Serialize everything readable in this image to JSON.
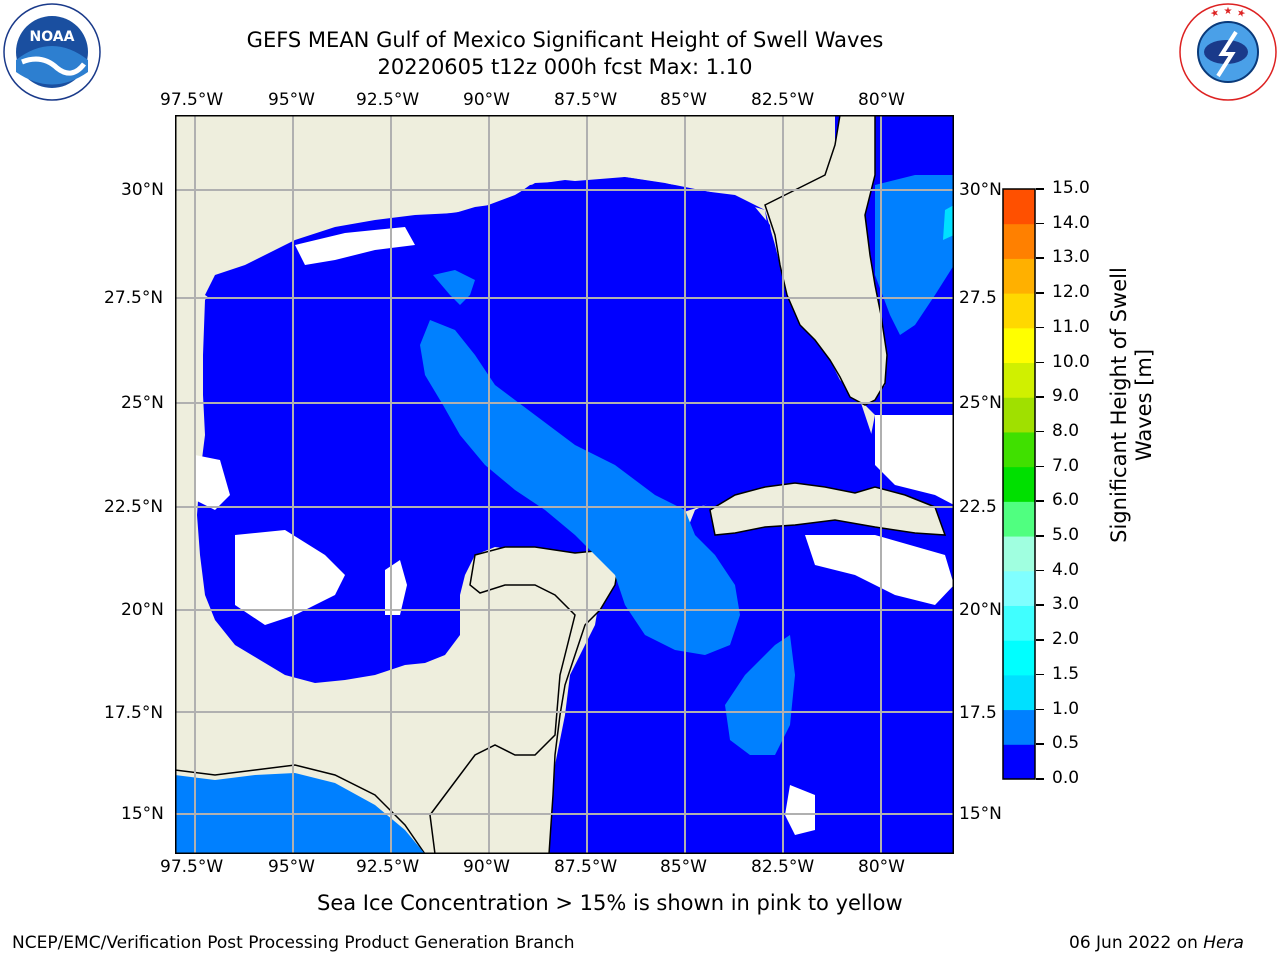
{
  "header": {
    "title_line1": "GEFS MEAN Gulf of Mexico Significant Height of Swell Waves",
    "title_line2": "20220605 t12z 000h fcst   Max: 1.10",
    "noaa_logo_text": "NOAA",
    "noaa_ring_text": "NATIONAL OCEANIC AND ATMOSPHERIC ADMINISTRATION · U.S. DEPARTMENT OF COMMERCE",
    "nws_ring_text": "NATIONAL WEATHER SERVICE"
  },
  "map": {
    "lon_labels": [
      "97.5°W",
      "95°W",
      "92.5°W",
      "90°W",
      "87.5°W",
      "85°W",
      "82.5°W",
      "80°W"
    ],
    "lat_labels_left": [
      "30°N",
      "27.5°N",
      "25°N",
      "22.5°N",
      "20°N",
      "17.5°N",
      "15°N"
    ],
    "lat_labels_right": [
      "30°N",
      "27.5",
      "25°N",
      "22.5",
      "20°N",
      "17.5",
      "15°N"
    ],
    "colors": {
      "land": "#eeeedd",
      "ocean_low": "#0000ff",
      "ocean_mid": "#0080ff",
      "ocean_high": "#00e0ff",
      "grid": "#b0b0b0"
    }
  },
  "colorbar": {
    "label": "Significant Height of Swell Waves [m]",
    "tick_labels": [
      "15.0",
      "14.0",
      "13.0",
      "12.0",
      "11.0",
      "10.0",
      "9.0",
      "8.0",
      "7.0",
      "6.0",
      "5.0",
      "4.0",
      "3.0",
      "2.0",
      "1.5",
      "1.0",
      "0.5",
      "0.0"
    ],
    "colors_bottom_to_top": [
      "#0000ff",
      "#0080ff",
      "#00e0ff",
      "#00ffff",
      "#40ffff",
      "#80ffff",
      "#a0ffe0",
      "#50ff80",
      "#00e000",
      "#40e000",
      "#a0e000",
      "#d0f000",
      "#ffff00",
      "#ffd800",
      "#ffb000",
      "#ff8000",
      "#ff5000",
      "#ff2000",
      "#ff0000"
    ]
  },
  "footer": {
    "sea_ice_note": "Sea Ice Concentration > 15% is shown in pink to yellow",
    "branch": "NCEP/EMC/Verification Post Processing Product Generation Branch",
    "date": "06 Jun 2022 on",
    "machine": "Hera"
  }
}
